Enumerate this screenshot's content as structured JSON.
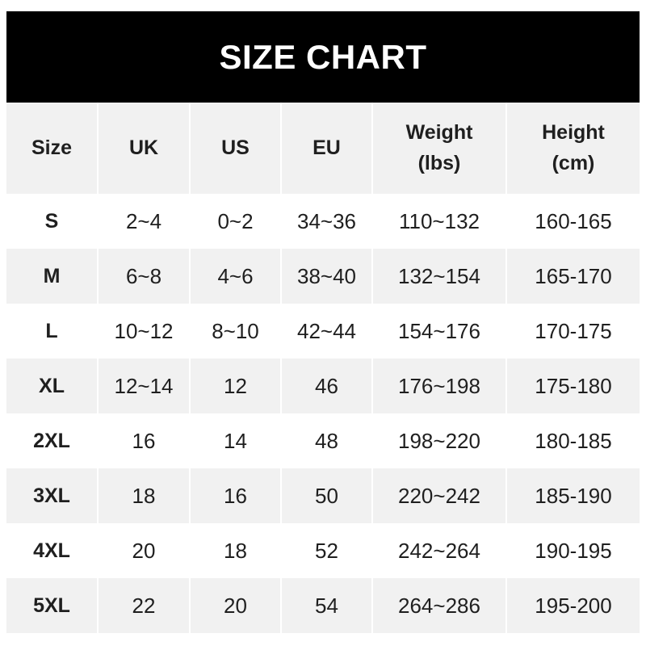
{
  "title": "SIZE CHART",
  "headers": [
    "Size",
    "UK",
    "US",
    "EU",
    "Weight\n(lbs)",
    "Height\n(cm)"
  ],
  "rows": [
    [
      "S",
      "2~4",
      "0~2",
      "34~36",
      "110~132",
      "160-165"
    ],
    [
      "M",
      "6~8",
      "4~6",
      "38~40",
      "132~154",
      "165-170"
    ],
    [
      "L",
      "10~12",
      "8~10",
      "42~44",
      "154~176",
      "170-175"
    ],
    [
      "XL",
      "12~14",
      "12",
      "46",
      "176~198",
      "175-180"
    ],
    [
      "2XL",
      "16",
      "14",
      "48",
      "198~220",
      "180-185"
    ],
    [
      "3XL",
      "18",
      "16",
      "50",
      "220~242",
      "185-190"
    ],
    [
      "4XL",
      "20",
      "18",
      "52",
      "242~264",
      "190-195"
    ],
    [
      "5XL",
      "22",
      "20",
      "54",
      "264~286",
      "195-200"
    ]
  ],
  "colors": {
    "header_bg": "#000000",
    "alt_row_bg": "#f1f1f1",
    "text": "#1f1f1f"
  }
}
